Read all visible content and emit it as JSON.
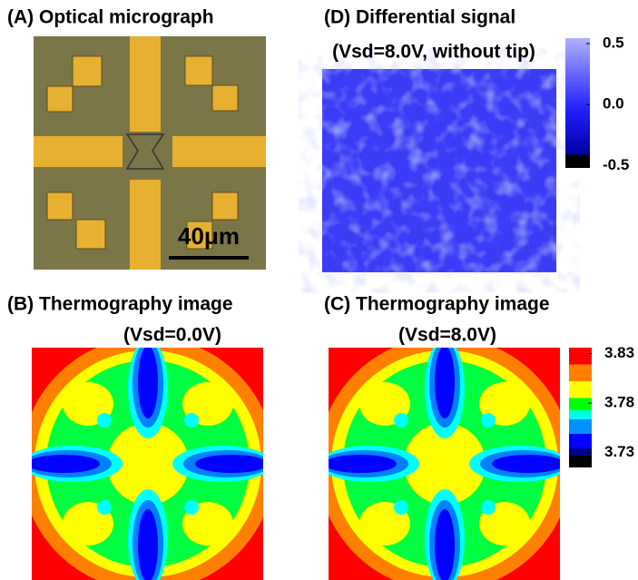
{
  "panels": [
    {
      "title": "(A) Optical micrograph",
      "scale_bar": "40μm"
    },
    {
      "title": "(D) Differential signal",
      "subtitle": "(Vsd=8.0V, without tip)",
      "colorbar": {
        "lim": [
          -0.52,
          0.545
        ],
        "ticks": [
          0.5,
          {
            "value": 0,
            "label": "0.0"
          },
          -0.5
        ]
      }
    },
    {
      "title": "(B) Thermography image",
      "subtitle": "(Vsd=0.0V)"
    },
    {
      "title": "(C) Thermography image",
      "subtitle": "(Vsd=8.0V)",
      "colorbar": {
        "lim": [
          3.715,
          3.836
        ],
        "ticks": [
          3.83,
          3.78,
          3.73
        ]
      }
    }
  ]
}
